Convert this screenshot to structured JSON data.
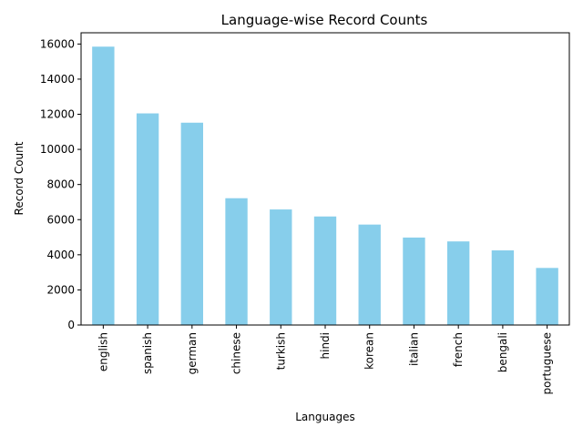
{
  "chart_data": {
    "type": "bar",
    "title": "Language-wise Record Counts",
    "xlabel": "Languages",
    "ylabel": "Record Count",
    "categories": [
      "english",
      "spanish",
      "german",
      "chinese",
      "turkish",
      "hindi",
      "korean",
      "italian",
      "french",
      "bengali",
      "portuguese"
    ],
    "values": [
      15850,
      12050,
      11520,
      7220,
      6580,
      6180,
      5720,
      4980,
      4760,
      4250,
      3250
    ],
    "yticks": [
      0,
      2000,
      4000,
      6000,
      8000,
      10000,
      12000,
      14000,
      16000
    ],
    "ylim": [
      0,
      16640
    ],
    "bar_color": "#87ceeb",
    "grid": false,
    "legend": "none"
  }
}
